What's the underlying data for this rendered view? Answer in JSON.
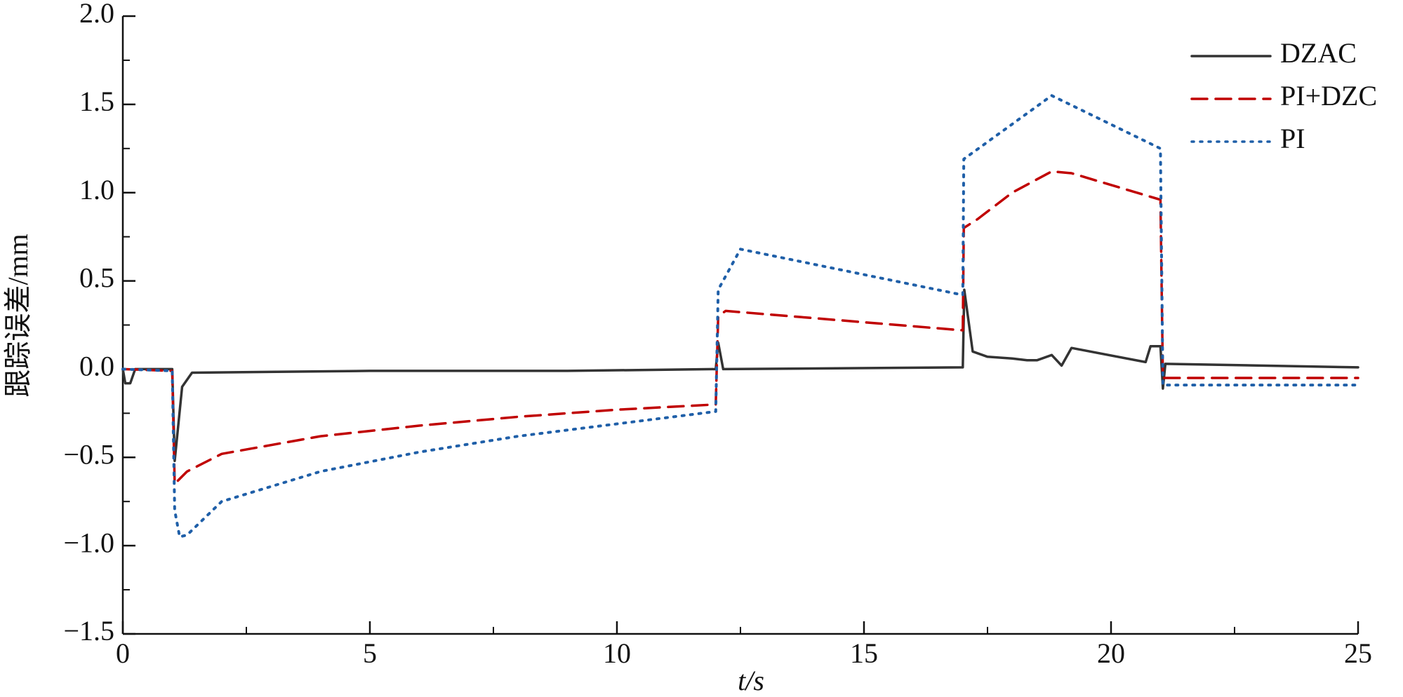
{
  "chart_data": {
    "type": "line",
    "xlabel": "t/s",
    "ylabel": "跟踪误差/mm",
    "xlim": [
      0,
      25
    ],
    "ylim": [
      -1.5,
      2.0
    ],
    "xticks": [
      0,
      5,
      10,
      15,
      20,
      25
    ],
    "xminorticks": [
      2.5,
      7.5,
      12.5,
      17.5,
      22.5
    ],
    "yticks": [
      {
        "value": -1.5,
        "label": "−1.5"
      },
      {
        "value": -1.0,
        "label": "−1.0"
      },
      {
        "value": -0.5,
        "label": "−0.5"
      },
      {
        "value": 0,
        "label": "0.0"
      },
      {
        "value": 0.5,
        "label": "0.5"
      },
      {
        "value": 1.0,
        "label": "1.0"
      },
      {
        "value": 1.5,
        "label": "1.5"
      },
      {
        "value": 2.0,
        "label": "2.0"
      }
    ],
    "yminorticks": [
      -1.25,
      -0.75,
      -0.25,
      0.25,
      0.75,
      1.25,
      1.75
    ],
    "legend": "upper right",
    "series": [
      {
        "name": "DZAC",
        "color": "#333333",
        "linestyle": "solid",
        "x": [
          0,
          0.05,
          0.15,
          0.25,
          1.0,
          1.05,
          1.2,
          1.4,
          5,
          9,
          12.0,
          12.05,
          12.15,
          17.0,
          17.03,
          17.2,
          17.5,
          18.0,
          18.3,
          18.5,
          18.8,
          19.0,
          19.2,
          20.7,
          20.8,
          21.0,
          21.05,
          21.1,
          25
        ],
        "values": [
          0,
          -0.08,
          -0.08,
          0,
          0,
          -0.52,
          -0.1,
          -0.02,
          -0.01,
          -0.01,
          0,
          0.15,
          0,
          0.01,
          0.45,
          0.1,
          0.07,
          0.06,
          0.05,
          0.05,
          0.08,
          0.02,
          0.12,
          0.04,
          0.13,
          0.13,
          -0.11,
          0.03,
          0.01
        ]
      },
      {
        "name": "PI+DZC",
        "color": "#c00000",
        "linestyle": "dashed",
        "x": [
          0,
          1.0,
          1.05,
          1.3,
          2,
          4,
          6,
          8,
          10,
          12.0,
          12.05,
          12.2,
          17.0,
          17.02,
          17.3,
          18.0,
          18.8,
          19.2,
          21.0,
          21.05,
          25
        ],
        "values": [
          0,
          -0.01,
          -0.65,
          -0.58,
          -0.48,
          -0.38,
          -0.32,
          -0.27,
          -0.23,
          -0.2,
          0.3,
          0.33,
          0.22,
          0.8,
          0.85,
          1.0,
          1.12,
          1.11,
          0.96,
          -0.05,
          -0.05
        ]
      },
      {
        "name": "PI",
        "color": "#1f5fa8",
        "linestyle": "dotted",
        "x": [
          0,
          1.0,
          1.05,
          1.15,
          1.3,
          2,
          4,
          6,
          8,
          10,
          12.0,
          12.05,
          12.5,
          17.0,
          17.02,
          18.8,
          21.0,
          21.05,
          25
        ],
        "values": [
          0,
          -0.01,
          -0.8,
          -0.95,
          -0.94,
          -0.75,
          -0.58,
          -0.47,
          -0.38,
          -0.31,
          -0.24,
          0.45,
          0.68,
          0.42,
          1.19,
          1.55,
          1.25,
          -0.09,
          -0.09
        ]
      }
    ]
  }
}
